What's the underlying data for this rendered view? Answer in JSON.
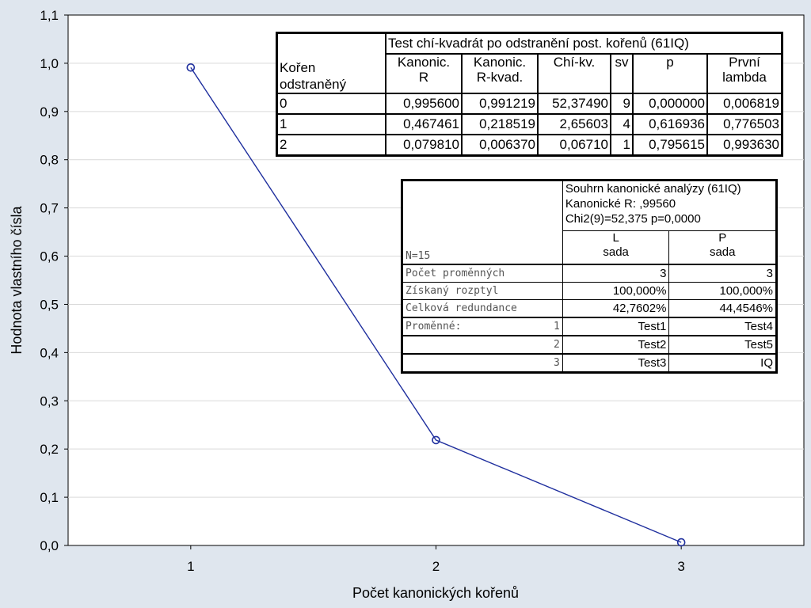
{
  "chart_data": {
    "type": "line",
    "xlabel": "Počet kanonických kořenů",
    "ylabel": "Hodnota vlastního čísla",
    "x": [
      1,
      2,
      3
    ],
    "x_ticks": [
      "1",
      "2",
      "3"
    ],
    "xlim": [
      0.5,
      3.5
    ],
    "y_ticks": [
      "0,0",
      "0,1",
      "0,2",
      "0,3",
      "0,4",
      "0,5",
      "0,6",
      "0,7",
      "0,8",
      "0,9",
      "1,0",
      "1,1"
    ],
    "ylim": [
      0,
      1.1
    ],
    "series": [
      {
        "values": [
          0.9912,
          0.2185,
          0.0064
        ]
      }
    ],
    "grid": true,
    "colors": {
      "line": "#1f2f9e",
      "grid": "#d9d9d9",
      "plot_bg": "#ffffff",
      "page_bg": "#dfe6ee"
    }
  },
  "test_table": {
    "title": "Test chí-kvadrát po odstranění post. kořenů (61IQ)",
    "root_header_line1": "Kořen",
    "root_header_line2": "odstraněný",
    "columns": [
      {
        "line1": "Kanonic.",
        "line2": "R"
      },
      {
        "line1": "Kanonic.",
        "line2": "R-kvad."
      },
      {
        "line1": "Chí-kv.",
        "line2": ""
      },
      {
        "line1": "sv",
        "line2": ""
      },
      {
        "line1": "p",
        "line2": ""
      },
      {
        "line1": "První",
        "line2": "lambda"
      }
    ],
    "rows": [
      {
        "root": "0",
        "cells": [
          "0,995600",
          "0,991219",
          "52,37490",
          "9",
          "0,000000",
          "0,006819"
        ]
      },
      {
        "root": "1",
        "cells": [
          "0,467461",
          "0,218519",
          "2,65603",
          "4",
          "0,616936",
          "0,776503"
        ]
      },
      {
        "root": "2",
        "cells": [
          "0,079810",
          "0,006370",
          "0,06710",
          "1",
          "0,795615",
          "0,993630"
        ]
      }
    ]
  },
  "summary_table": {
    "info_line1": "Souhrn kanonické analýzy (61IQ)",
    "info_line2": "Kanonické R: ,99560",
    "info_line3": "Chi2(9)=52,375 p=0,0000",
    "n_label": "N=15",
    "col_l_line1": "L",
    "col_l_line2": "sada",
    "col_p_line1": "P",
    "col_p_line2": "sada",
    "rows": [
      {
        "label": "Počet proměnných",
        "l": "3",
        "p": "3"
      },
      {
        "label": "Získaný rozptyl",
        "l": "100,000%",
        "p": "100,000%"
      },
      {
        "label": "Celková redundance",
        "l": "42,7602%",
        "p": "44,4546%"
      }
    ],
    "vars_label": "Proměnné:",
    "vars": [
      {
        "idx": "1",
        "l": "Test1",
        "p": "Test4"
      },
      {
        "idx": "2",
        "l": "Test2",
        "p": "Test5"
      },
      {
        "idx": "3",
        "l": "Test3",
        "p": "IQ"
      }
    ]
  }
}
